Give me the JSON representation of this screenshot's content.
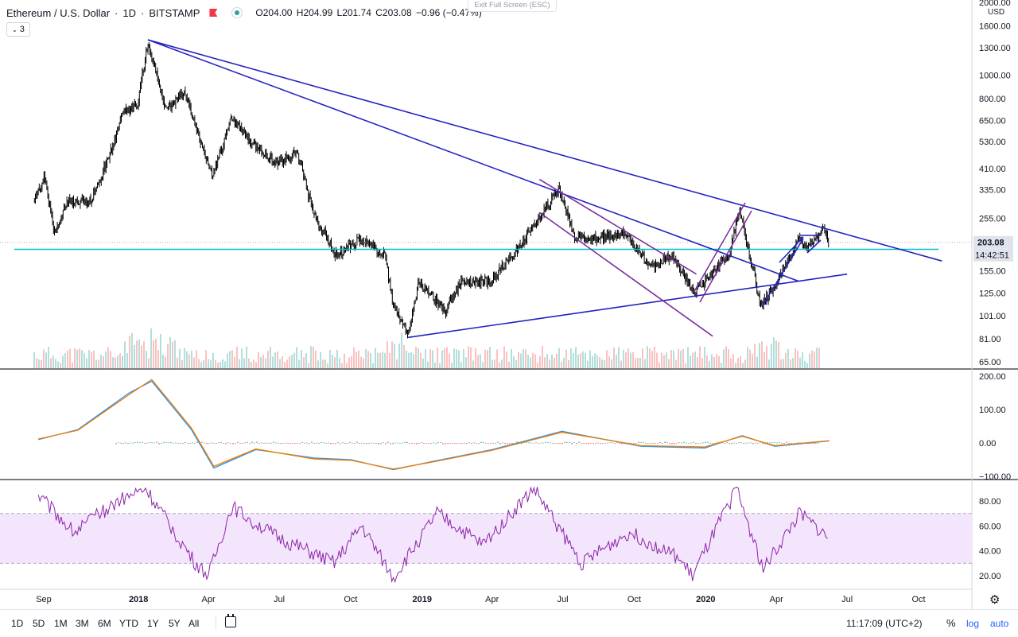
{
  "header": {
    "symbol": "Ethereum / U.S. Dollar",
    "interval": "1D",
    "exchange": "BITSTAMP",
    "ohlc": {
      "o": "204.00",
      "h": "204.99",
      "l": "201.74",
      "c": "203.08",
      "change": "−0.96 (−0.47%)"
    },
    "labels": {
      "o": "O",
      "h": "H",
      "l": "L",
      "c": "C"
    },
    "exit_fullscreen": "Exit Full Screen (ESC)",
    "collapse_count": "3"
  },
  "chart_data": [
    {
      "type": "candlestick",
      "title": "Ethereum / U.S. Dollar",
      "currency": "USD",
      "scale": "log",
      "ylim": [
        60,
        2000
      ],
      "price_ticks": [
        "2000.00",
        "1600.00",
        "1300.00",
        "1000.00",
        "800.00",
        "650.00",
        "530.00",
        "410.00",
        "335.00",
        "255.00",
        "155.00",
        "125.00",
        "101.00",
        "81.00",
        "65.00"
      ],
      "last_price": "203.08",
      "countdown": "14:42:51",
      "x_ticks": [
        "Sep",
        "2018",
        "Apr",
        "Jul",
        "Oct",
        "2019",
        "Apr",
        "Jul",
        "Oct",
        "2020",
        "Apr",
        "Jul",
        "Oct"
      ],
      "approx_close_path": [
        [
          "2017-08-20",
          300
        ],
        [
          "2017-09-02",
          380
        ],
        [
          "2017-09-15",
          220
        ],
        [
          "2017-10-01",
          300
        ],
        [
          "2017-11-01",
          300
        ],
        [
          "2017-11-25",
          470
        ],
        [
          "2017-12-12",
          700
        ],
        [
          "2017-12-31",
          760
        ],
        [
          "2018-01-13",
          1380
        ],
        [
          "2018-02-06",
          700
        ],
        [
          "2018-03-01",
          870
        ],
        [
          "2018-04-06",
          380
        ],
        [
          "2018-05-01",
          670
        ],
        [
          "2018-05-28",
          520
        ],
        [
          "2018-06-28",
          430
        ],
        [
          "2018-07-24",
          480
        ],
        [
          "2018-08-14",
          270
        ],
        [
          "2018-09-12",
          180
        ],
        [
          "2018-10-15",
          210
        ],
        [
          "2018-11-14",
          180
        ],
        [
          "2018-11-25",
          110
        ],
        [
          "2018-12-14",
          84
        ],
        [
          "2018-12-28",
          140
        ],
        [
          "2019-01-31",
          105
        ],
        [
          "2019-02-20",
          140
        ],
        [
          "2019-03-31",
          140
        ],
        [
          "2019-05-14",
          210
        ],
        [
          "2019-06-26",
          340
        ],
        [
          "2019-07-17",
          210
        ],
        [
          "2019-08-10",
          210
        ],
        [
          "2019-09-18",
          220
        ],
        [
          "2019-10-24",
          160
        ],
        [
          "2019-11-20",
          180
        ],
        [
          "2019-12-17",
          125
        ],
        [
          "2020-01-31",
          180
        ],
        [
          "2020-02-14",
          280
        ],
        [
          "2020-03-12",
          110
        ],
        [
          "2020-03-31",
          135
        ],
        [
          "2020-04-30",
          210
        ],
        [
          "2020-05-10",
          190
        ],
        [
          "2020-05-31",
          230
        ],
        [
          "2020-06-08",
          203
        ]
      ],
      "horizontal_line": 190,
      "trendlines": [
        {
          "color": "#2222c0",
          "from": [
            "2018-01-13",
            1400
          ],
          "to": [
            "2020-10-31",
            170
          ]
        },
        {
          "color": "#2222c0",
          "from": [
            "2018-01-13",
            1400
          ],
          "to": [
            "2020-04-30",
            140
          ]
        },
        {
          "color": "#2222c0",
          "from": [
            "2018-12-14",
            82
          ],
          "to": [
            "2020-07-01",
            150
          ]
        },
        {
          "color": "#7b2c9c",
          "from": [
            "2019-06-01",
            370
          ],
          "to": [
            "2019-12-20",
            150
          ]
        },
        {
          "color": "#7b2c9c",
          "from": [
            "2019-06-01",
            270
          ],
          "to": [
            "2020-01-10",
            83
          ]
        }
      ]
    },
    {
      "type": "line",
      "indicator": "MACD",
      "ylim": [
        -100,
        220
      ],
      "ticks": [
        "200.00",
        "100.00",
        "0.00",
        "−100.00"
      ],
      "series": [
        {
          "color": "#2196f3",
          "x": [
            "2017-08-25",
            "2017-10-15",
            "2017-12-20",
            "2018-01-18",
            "2018-03-10",
            "2018-04-08",
            "2018-06-01",
            "2018-08-15",
            "2018-10-01",
            "2018-11-25",
            "2019-01-15",
            "2019-04-01",
            "2019-06-30",
            "2019-10-10",
            "2019-12-31",
            "2020-02-17",
            "2020-03-30",
            "2020-06-08"
          ],
          "values": [
            10,
            40,
            150,
            185,
            40,
            -75,
            -20,
            -45,
            -50,
            -80,
            -55,
            -20,
            35,
            -10,
            -15,
            22,
            -10,
            6
          ]
        },
        {
          "color": "#f57c00",
          "x": [
            "2017-08-25",
            "2017-10-15",
            "2017-12-20",
            "2018-01-18",
            "2018-03-10",
            "2018-04-08",
            "2018-06-01",
            "2018-08-15",
            "2018-10-01",
            "2018-11-25",
            "2019-01-15",
            "2019-04-01",
            "2019-06-30",
            "2019-10-10",
            "2019-12-31",
            "2020-02-17",
            "2020-03-30",
            "2020-06-08"
          ],
          "values": [
            12,
            38,
            145,
            190,
            45,
            -70,
            -18,
            -48,
            -52,
            -78,
            -57,
            -22,
            32,
            -8,
            -12,
            20,
            -8,
            7
          ]
        }
      ]
    },
    {
      "type": "line",
      "indicator": "RSI",
      "ylim": [
        10,
        95
      ],
      "ticks": [
        "80.00",
        "60.00",
        "40.00",
        "20.00"
      ],
      "band": [
        30,
        70
      ],
      "series": [
        {
          "color": "#8e24aa",
          "x": [
            "2017-08-25",
            "2017-10-10",
            "2017-12-05",
            "2018-01-10",
            "2018-03-15",
            "2018-04-01",
            "2018-05-01",
            "2018-07-01",
            "2018-09-10",
            "2018-10-15",
            "2018-11-25",
            "2019-01-20",
            "2019-03-20",
            "2019-05-25",
            "2019-07-25",
            "2019-09-25",
            "2019-11-25",
            "2019-12-15",
            "2020-02-10",
            "2020-03-15",
            "2020-05-01",
            "2020-06-08"
          ],
          "values": [
            85,
            55,
            80,
            90,
            30,
            20,
            75,
            50,
            30,
            60,
            18,
            70,
            45,
            90,
            30,
            55,
            35,
            20,
            90,
            25,
            70,
            50
          ]
        }
      ]
    }
  ],
  "bottom_bar": {
    "ranges": [
      "1D",
      "5D",
      "1M",
      "3M",
      "6M",
      "YTD",
      "1Y",
      "5Y",
      "All"
    ],
    "clock": "11:17:09 (UTC+2)",
    "pct": "%",
    "log": "log",
    "auto": "auto"
  }
}
